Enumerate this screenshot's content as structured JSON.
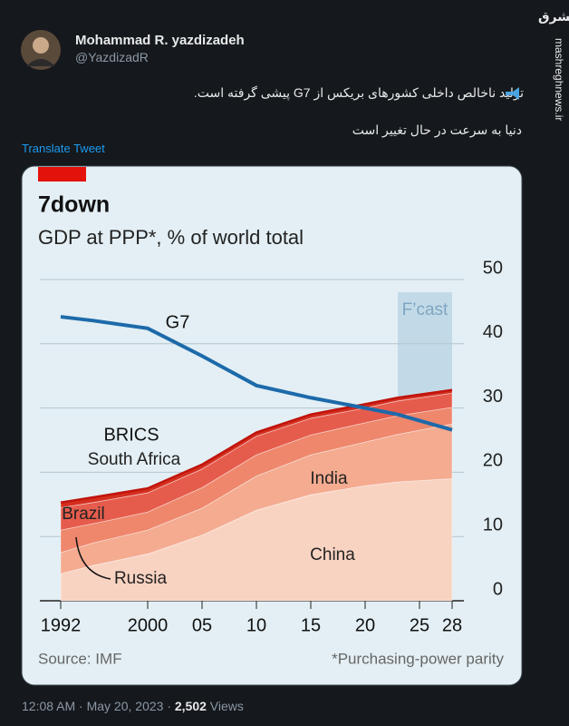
{
  "tweet": {
    "author_name": "Mohammad R. yazdizadeh",
    "handle": "@YazdizadR",
    "text_lines": [
      "تولید ناخالص داخلی کشورهای بریکس از G7 پیشی گرفته است.",
      "دنیا به سرعت در حال تغییر است"
    ],
    "translate": "Translate Tweet",
    "timestamp": "12:08 AM · May 20, 2023 · ",
    "views": "2,502",
    "views_label": " Views"
  },
  "watermark": {
    "logo": "مشرق",
    "site": "mashreghnews.ir"
  },
  "chart_data": {
    "type": "stacked-area",
    "title": "7down",
    "subtitle": "GDP at PPP*, % of world total",
    "source": "Source: IMF",
    "footnote": "*Purchasing-power parity",
    "group_label": "BRICS",
    "forecast_label": "F’cast",
    "forecast_start": 2023,
    "x": [
      1992,
      1995,
      2000,
      2005,
      2010,
      2015,
      2020,
      2023,
      2028
    ],
    "xlim": [
      1992,
      2028
    ],
    "xticks": [
      1992,
      2000,
      {
        "value": 2005,
        "label": "05"
      },
      {
        "value": 2010,
        "label": "10"
      },
      {
        "value": 2015,
        "label": "15"
      },
      {
        "value": 2020,
        "label": "20"
      },
      {
        "value": 2025,
        "label": "25"
      },
      {
        "value": 2028,
        "label": "28"
      }
    ],
    "ylim": [
      0,
      50
    ],
    "yticks": [
      0,
      10,
      20,
      30,
      40,
      50
    ],
    "grid": true,
    "series": [
      {
        "name": "China",
        "color": "#f9d3c2",
        "values": [
          4.2,
          5.5,
          7.3,
          10.2,
          14.1,
          16.5,
          17.9,
          18.5,
          19
        ]
      },
      {
        "name": "India",
        "color": "#f4ab90",
        "values": [
          3.3,
          3.5,
          3.7,
          4.2,
          5.3,
          6.2,
          6.8,
          7.4,
          8.5
        ]
      },
      {
        "name": "Russia",
        "color": "#ee876c",
        "values": [
          3.5,
          3.0,
          2.8,
          3.2,
          3.3,
          3.1,
          3.0,
          2.9,
          2.6
        ]
      },
      {
        "name": "Brazil",
        "color": "#e65c4c",
        "values": [
          3.5,
          3.3,
          3.0,
          2.9,
          2.9,
          2.6,
          2.3,
          2.3,
          2.2
        ]
      },
      {
        "name": "South Africa",
        "color": "#d42e1f",
        "values": [
          0.8,
          0.8,
          0.7,
          0.7,
          0.6,
          0.6,
          0.6,
          0.5,
          0.5
        ]
      }
    ],
    "line_series": {
      "name": "G7",
      "color": "#1d6aaa",
      "values": [
        44.2,
        43.6,
        42.4,
        38.1,
        33.5,
        31.6,
        30.0,
        29.0,
        26.6
      ]
    }
  }
}
